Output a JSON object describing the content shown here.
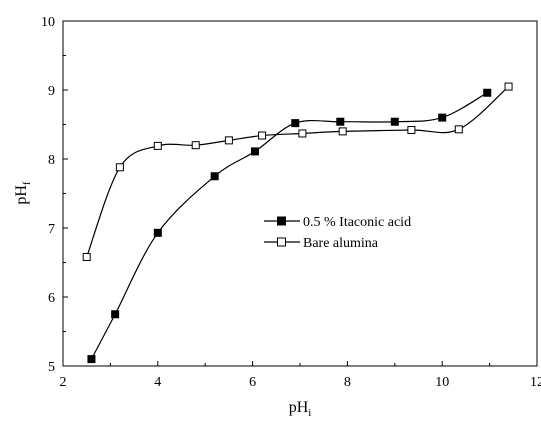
{
  "chart_data": {
    "type": "line",
    "title": "",
    "xlabel": "pH",
    "xlabel_subscript": "i",
    "ylabel": "pH",
    "ylabel_subscript": "f",
    "xlim": [
      2,
      12
    ],
    "ylim": [
      5,
      10
    ],
    "xticks": [
      2,
      4,
      6,
      8,
      10,
      12
    ],
    "yticks": [
      5,
      6,
      7,
      8,
      9,
      10
    ],
    "grid": false,
    "legend_position": "center-right",
    "series": [
      {
        "name": "0.5 % Itaconic acid",
        "marker": "filled-square",
        "color": "#000000",
        "x": [
          2.6,
          3.1,
          4.0,
          5.2,
          6.05,
          6.9,
          7.85,
          9.0,
          10.0,
          10.95
        ],
        "y": [
          5.1,
          5.75,
          6.93,
          7.75,
          8.11,
          8.52,
          8.54,
          8.54,
          8.6,
          8.96
        ]
      },
      {
        "name": "Bare alumina",
        "marker": "open-square",
        "color": "#000000",
        "x": [
          2.5,
          3.2,
          4.0,
          4.8,
          5.5,
          6.2,
          7.05,
          7.9,
          9.35,
          10.35,
          11.4
        ],
        "y": [
          6.58,
          7.88,
          8.19,
          8.2,
          8.27,
          8.34,
          8.37,
          8.4,
          8.42,
          8.43,
          9.05
        ]
      }
    ]
  }
}
